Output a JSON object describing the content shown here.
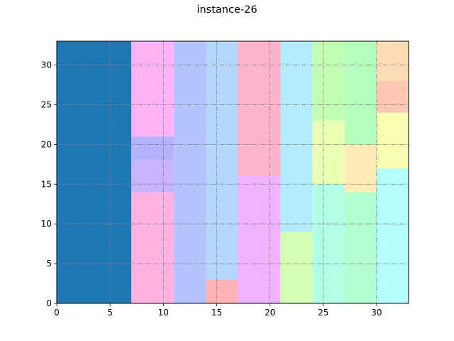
{
  "chart_data": {
    "type": "rect-packing",
    "title": "instance-26",
    "xlim": [
      0,
      33
    ],
    "ylim": [
      0,
      33
    ],
    "xticks": [
      0,
      5,
      10,
      15,
      20,
      25,
      30
    ],
    "yticks": [
      0,
      5,
      10,
      15,
      20,
      25,
      30
    ],
    "grid": true,
    "rects": [
      {
        "x": 0,
        "y": 0,
        "w": 7,
        "h": 33,
        "color": "#1f77b4"
      },
      {
        "x": 7,
        "y": 0,
        "w": 4,
        "h": 14,
        "color": "#ffb3e2"
      },
      {
        "x": 7,
        "y": 14,
        "w": 4,
        "h": 4,
        "color": "#c8b3ff"
      },
      {
        "x": 7,
        "y": 18,
        "w": 4,
        "h": 3,
        "color": "#b3b3ff"
      },
      {
        "x": 7,
        "y": 21,
        "w": 4,
        "h": 12,
        "color": "#ffb3f7"
      },
      {
        "x": 11,
        "y": 0,
        "w": 3,
        "h": 33,
        "color": "#b3c3ff"
      },
      {
        "x": 14,
        "y": 0,
        "w": 3,
        "h": 3,
        "color": "#ffb3b3"
      },
      {
        "x": 14,
        "y": 3,
        "w": 3,
        "h": 30,
        "color": "#b3d7ff"
      },
      {
        "x": 17,
        "y": 0,
        "w": 4,
        "h": 16,
        "color": "#f0b3ff"
      },
      {
        "x": 17,
        "y": 16,
        "w": 4,
        "h": 17,
        "color": "#ffb3cc"
      },
      {
        "x": 21,
        "y": 0,
        "w": 3,
        "h": 9,
        "color": "#d5ffb3"
      },
      {
        "x": 21,
        "y": 9,
        "w": 3,
        "h": 24,
        "color": "#b3ebff"
      },
      {
        "x": 24,
        "y": 0,
        "w": 3,
        "h": 15,
        "color": "#b3ffe6"
      },
      {
        "x": 24,
        "y": 15,
        "w": 3,
        "h": 8,
        "color": "#ebffb3"
      },
      {
        "x": 24,
        "y": 23,
        "w": 3,
        "h": 10,
        "color": "#c3ffb3"
      },
      {
        "x": 27,
        "y": 0,
        "w": 3,
        "h": 14,
        "color": "#b3ffd2"
      },
      {
        "x": 27,
        "y": 14,
        "w": 3,
        "h": 6,
        "color": "#ffebb3"
      },
      {
        "x": 27,
        "y": 20,
        "w": 3,
        "h": 13,
        "color": "#b3ffbe"
      },
      {
        "x": 30,
        "y": 0,
        "w": 3,
        "h": 17,
        "color": "#b3ffff"
      },
      {
        "x": 30,
        "y": 17,
        "w": 3,
        "h": 7,
        "color": "#f7ffb3"
      },
      {
        "x": 30,
        "y": 24,
        "w": 3,
        "h": 4,
        "color": "#ffc8b3"
      },
      {
        "x": 30,
        "y": 28,
        "w": 3,
        "h": 5,
        "color": "#ffdcb3"
      }
    ]
  }
}
